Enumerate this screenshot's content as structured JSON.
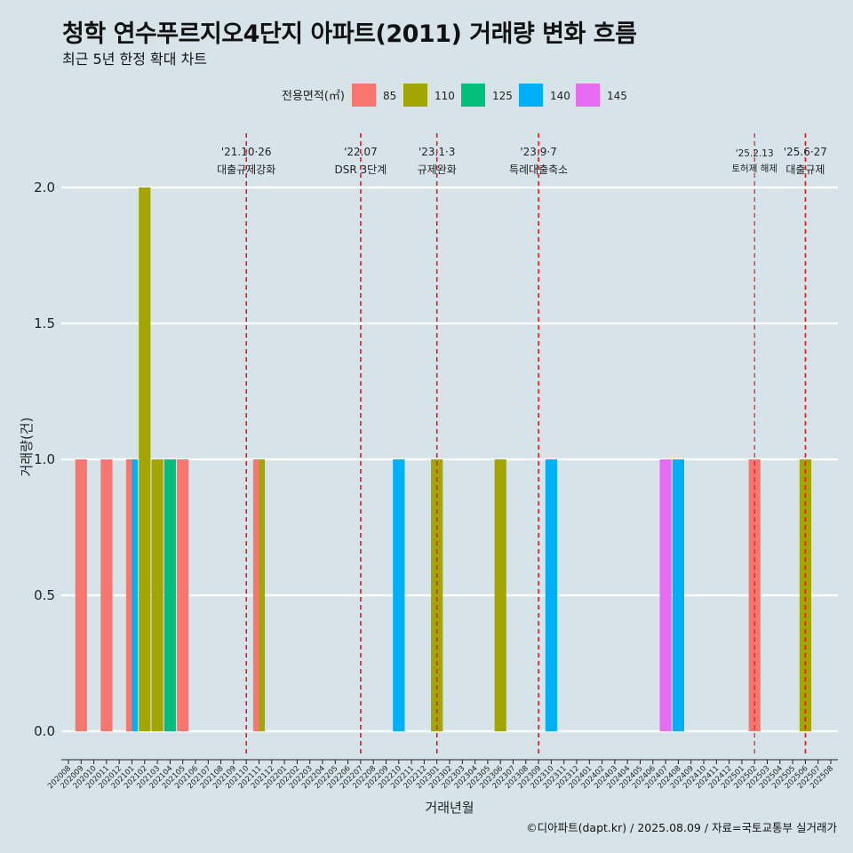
{
  "title": "청학 연수푸르지오4단지 아파트(2011) 거래량 변화 흐름",
  "subtitle": "최근 5년 한정 확대 차트",
  "caption": "©디아파트(dapt.kr) / 2025.08.09 / 자료=국토교통부 실거래가",
  "legend_title": "전용면적(㎡)",
  "colors": {
    "background": "#d6e4ea",
    "85": "#f8766d",
    "110": "#a3a500",
    "125": "#00bf7d",
    "140": "#00b0f6",
    "145": "#e76bf3",
    "event_line": "#e31a1c"
  },
  "chart_data": {
    "type": "bar",
    "xlabel": "거래년월",
    "ylabel": "거래량(건)",
    "ylim": [
      0,
      2
    ],
    "yticks": [
      "0.0",
      "0.5",
      "1.0",
      "1.5",
      "2.0"
    ],
    "grid": true,
    "legend_position": "top",
    "categories": [
      "202008",
      "202009",
      "202010",
      "202011",
      "202012",
      "202101",
      "202102",
      "202103",
      "202104",
      "202105",
      "202106",
      "202107",
      "202108",
      "202109",
      "202110",
      "202111",
      "202112",
      "202201",
      "202202",
      "202203",
      "202204",
      "202205",
      "202206",
      "202207",
      "202208",
      "202209",
      "202210",
      "202211",
      "202212",
      "202301",
      "202302",
      "202303",
      "202304",
      "202305",
      "202306",
      "202307",
      "202308",
      "202309",
      "202310",
      "202311",
      "202312",
      "202401",
      "202402",
      "202403",
      "202404",
      "202405",
      "202406",
      "202407",
      "202408",
      "202409",
      "202410",
      "202411",
      "202412",
      "202501",
      "202502",
      "202503",
      "202504",
      "202505",
      "202506",
      "202507",
      "202508"
    ],
    "series": [
      {
        "name": "85",
        "points": [
          {
            "month": "202009",
            "value": 1
          },
          {
            "month": "202011",
            "value": 1
          },
          {
            "month": "202101",
            "value": 1
          },
          {
            "month": "202105",
            "value": 1
          },
          {
            "month": "202111",
            "value": 1
          },
          {
            "month": "202502",
            "value": 1
          }
        ]
      },
      {
        "name": "110",
        "points": [
          {
            "month": "202102",
            "value": 2
          },
          {
            "month": "202103",
            "value": 1
          },
          {
            "month": "202111",
            "value": 1
          },
          {
            "month": "202301",
            "value": 1
          },
          {
            "month": "202306",
            "value": 1
          },
          {
            "month": "202506",
            "value": 1
          }
        ]
      },
      {
        "name": "125",
        "points": [
          {
            "month": "202104",
            "value": 1
          }
        ]
      },
      {
        "name": "140",
        "points": [
          {
            "month": "202101",
            "value": 1
          },
          {
            "month": "202210",
            "value": 1
          },
          {
            "month": "202310",
            "value": 1
          },
          {
            "month": "202408",
            "value": 1
          }
        ]
      },
      {
        "name": "145",
        "points": [
          {
            "month": "202407",
            "value": 1
          }
        ]
      }
    ],
    "annotations": [
      {
        "month": "202110",
        "date": "'21.10·26",
        "label": "대출규제강화",
        "style": "major"
      },
      {
        "month": "202207",
        "date": "'22.07",
        "label": "DSR 3단계",
        "style": "major"
      },
      {
        "month": "202301",
        "date": "'23.1·3",
        "label": "규제완화",
        "style": "major"
      },
      {
        "month": "202309",
        "date": "'23.9·7",
        "label": "특례대출축소",
        "style": "major"
      },
      {
        "month": "202502",
        "date": "'25.2.13",
        "label": "토허제 해제",
        "style": "minor"
      },
      {
        "month": "202506",
        "date": "'25.6·27",
        "label": "대출규제",
        "style": "major"
      }
    ]
  }
}
